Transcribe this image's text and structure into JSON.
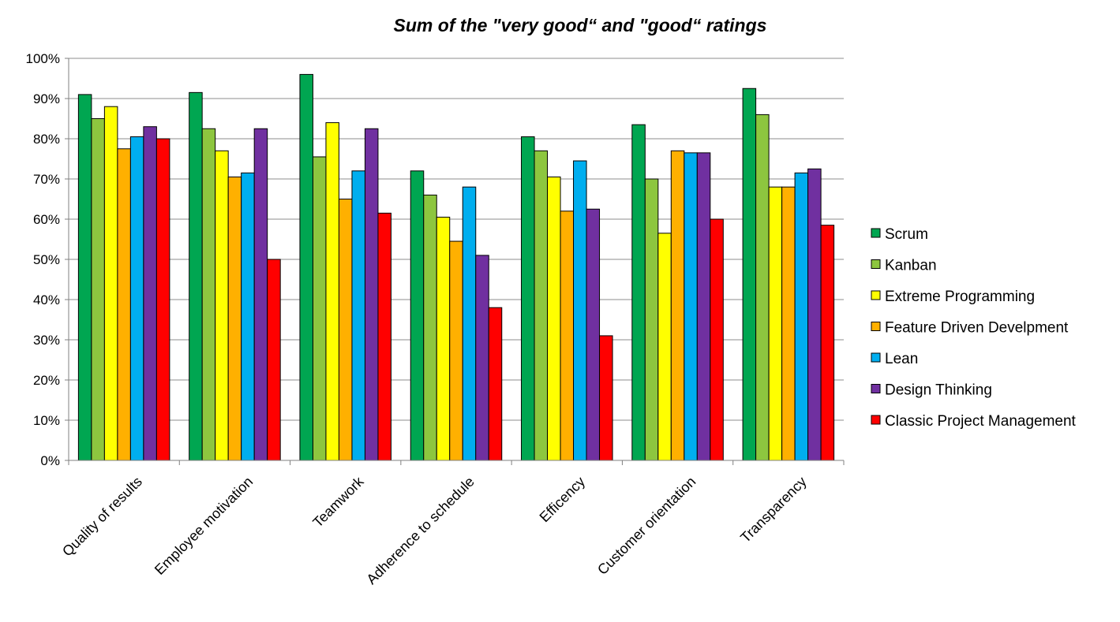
{
  "chart_data": {
    "type": "bar",
    "title": "Sum of the \"very good“ and \"good“ ratings",
    "xlabel": "",
    "ylabel": "",
    "ylim": [
      0,
      100
    ],
    "y_ticks": [
      "0%",
      "10%",
      "20%",
      "30%",
      "40%",
      "50%",
      "60%",
      "70%",
      "80%",
      "90%",
      "100%"
    ],
    "grid": true,
    "legend_position": "right",
    "categories": [
      "Quality of results",
      "Employee motivation",
      "Teamwork",
      "Adherence to schedule",
      "Efficency",
      "Customer orientation",
      "Transparency"
    ],
    "series": [
      {
        "name": "Scrum",
        "color": "#00a651",
        "values": [
          91,
          91.5,
          96,
          72,
          80.5,
          83.5,
          92.5
        ]
      },
      {
        "name": "Kanban",
        "color": "#8dc63f",
        "values": [
          85,
          82.5,
          75.5,
          66,
          77,
          70,
          86
        ]
      },
      {
        "name": "Extreme Programming",
        "color": "#ffff00",
        "values": [
          88,
          77,
          84,
          60.5,
          70.5,
          56.5,
          68
        ]
      },
      {
        "name": "Feature Driven Develpment",
        "color": "#ffb000",
        "values": [
          77.5,
          70.5,
          65,
          54.5,
          62,
          77,
          68
        ]
      },
      {
        "name": "Lean",
        "color": "#00aeef",
        "values": [
          80.5,
          71.5,
          72,
          68,
          74.5,
          76.5,
          71.5
        ]
      },
      {
        "name": "Design Thinking",
        "color": "#7030a0",
        "values": [
          83,
          82.5,
          82.5,
          51,
          62.5,
          76.5,
          72.5
        ]
      },
      {
        "name": "Classic Project Management",
        "color": "#ff0000",
        "values": [
          80,
          50,
          61.5,
          38,
          31,
          60,
          58.5
        ]
      }
    ]
  }
}
